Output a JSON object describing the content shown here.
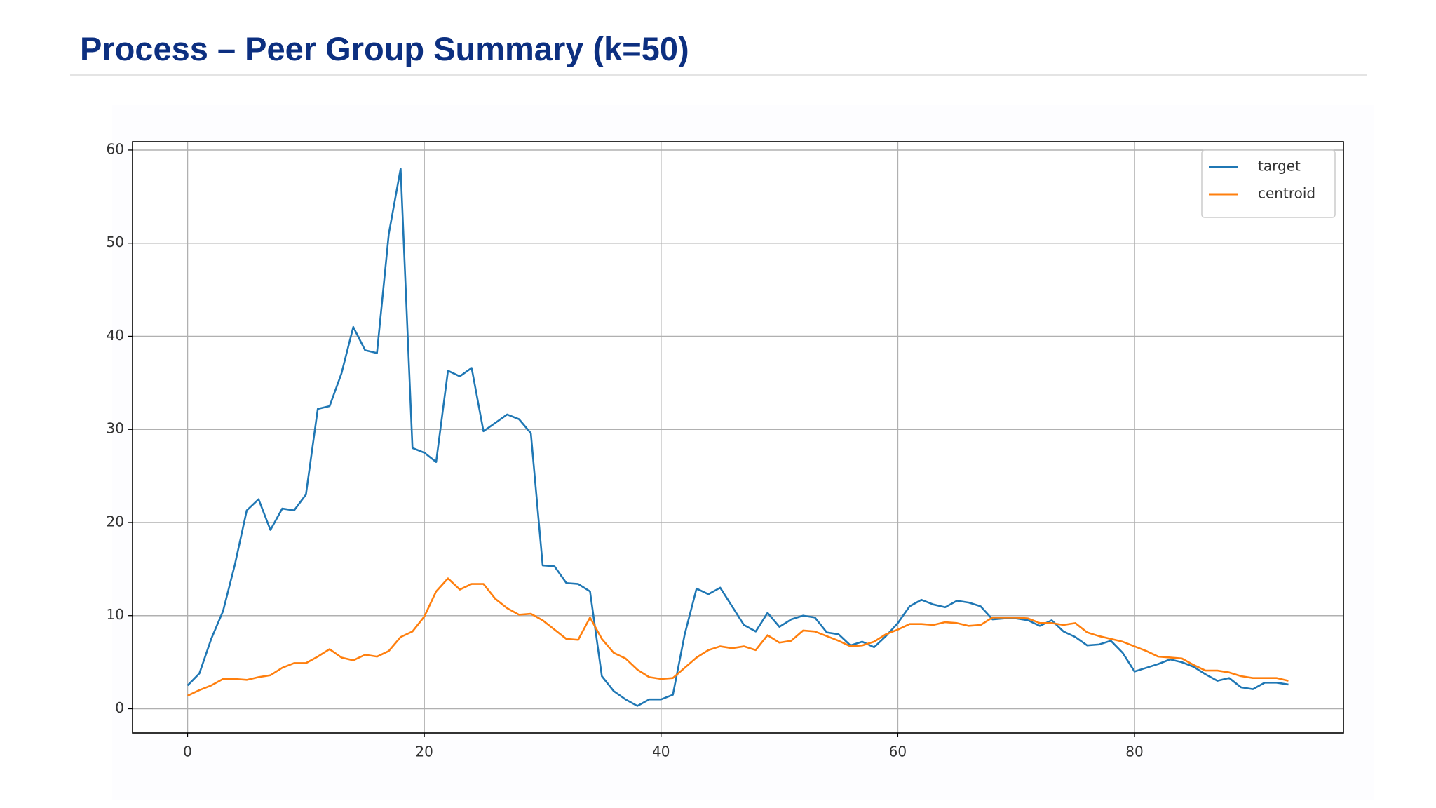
{
  "header": {
    "title": "Process – Peer Group Summary (k=50)"
  },
  "chart_data": {
    "type": "line",
    "x": [
      0,
      1,
      2,
      3,
      4,
      5,
      6,
      7,
      8,
      9,
      10,
      11,
      12,
      13,
      14,
      15,
      16,
      17,
      18,
      19,
      20,
      21,
      22,
      23,
      24,
      25,
      26,
      27,
      28,
      29,
      30,
      31,
      32,
      33,
      34,
      35,
      36,
      37,
      38,
      39,
      40,
      41,
      42,
      43,
      44,
      45,
      46,
      47,
      48,
      49,
      50,
      51,
      52,
      53,
      54,
      55,
      56,
      57,
      58,
      59,
      60,
      61,
      62,
      63,
      64,
      65,
      66,
      67,
      68,
      69,
      70,
      71,
      72,
      73,
      74,
      75,
      76,
      77,
      78,
      79,
      80,
      81,
      82,
      83,
      84,
      85,
      86,
      87,
      88,
      89,
      90,
      91,
      92,
      93
    ],
    "series": [
      {
        "name": "target",
        "color": "#1f77b4",
        "values": [
          2.5,
          3.8,
          7.5,
          10.5,
          15.5,
          21.3,
          22.5,
          19.2,
          21.5,
          21.3,
          23,
          32.2,
          32.5,
          36,
          41,
          38.5,
          38.2,
          51,
          58,
          28,
          27.5,
          26.5,
          36.3,
          35.7,
          36.6,
          29.8,
          30.7,
          31.6,
          31.1,
          29.6,
          15.4,
          15.3,
          13.5,
          13.4,
          12.6,
          3.5,
          1.9,
          1.0,
          0.3,
          1.0,
          1.0,
          1.5,
          8.0,
          12.9,
          12.3,
          13.0,
          11.0,
          9.0,
          8.3,
          10.3,
          8.8,
          9.6,
          10.0,
          9.8,
          8.2,
          8.0,
          6.8,
          7.2,
          6.6,
          7.8,
          9.2,
          11.0,
          11.7,
          11.2,
          10.9,
          11.6,
          11.4,
          11.0,
          9.6,
          9.7,
          9.7,
          9.5,
          8.9,
          9.5,
          8.3,
          7.7,
          6.8,
          6.9,
          7.3,
          6.0,
          4.0,
          4.4,
          4.8,
          5.3,
          5.0,
          4.5,
          3.7,
          3.0,
          3.3,
          2.3,
          2.1,
          2.8,
          2.8,
          2.6
        ]
      },
      {
        "name": "centroid",
        "color": "#ff7f0e",
        "values": [
          1.4,
          2.0,
          2.5,
          3.2,
          3.2,
          3.1,
          3.4,
          3.6,
          4.4,
          4.9,
          4.9,
          5.6,
          6.4,
          5.5,
          5.2,
          5.8,
          5.6,
          6.2,
          7.7,
          8.3,
          9.9,
          12.6,
          14.0,
          12.8,
          13.4,
          13.4,
          11.8,
          10.8,
          10.1,
          10.2,
          9.5,
          8.5,
          7.5,
          7.4,
          9.8,
          7.5,
          6.0,
          5.4,
          4.2,
          3.4,
          3.2,
          3.3,
          4.4,
          5.5,
          6.3,
          6.7,
          6.5,
          6.7,
          6.3,
          7.9,
          7.1,
          7.3,
          8.4,
          8.3,
          7.8,
          7.3,
          6.7,
          6.8,
          7.2,
          8.0,
          8.5,
          9.1,
          9.1,
          9.0,
          9.3,
          9.2,
          8.9,
          9.0,
          9.8,
          9.8,
          9.8,
          9.7,
          9.2,
          9.2,
          9.0,
          9.2,
          8.2,
          7.8,
          7.5,
          7.2,
          6.7,
          6.2,
          5.6,
          5.5,
          5.4,
          4.7,
          4.1,
          4.1,
          3.9,
          3.5,
          3.3,
          3.3,
          3.3,
          3.0
        ]
      }
    ],
    "xlim": [
      -4.65,
      97.65
    ],
    "xticks": [
      0,
      20,
      40,
      60,
      80
    ],
    "ylim": [
      -2.6,
      60.9
    ],
    "yticks": [
      0,
      10,
      20,
      30,
      40,
      50,
      60
    ],
    "grid": true,
    "legend": "upper right"
  }
}
